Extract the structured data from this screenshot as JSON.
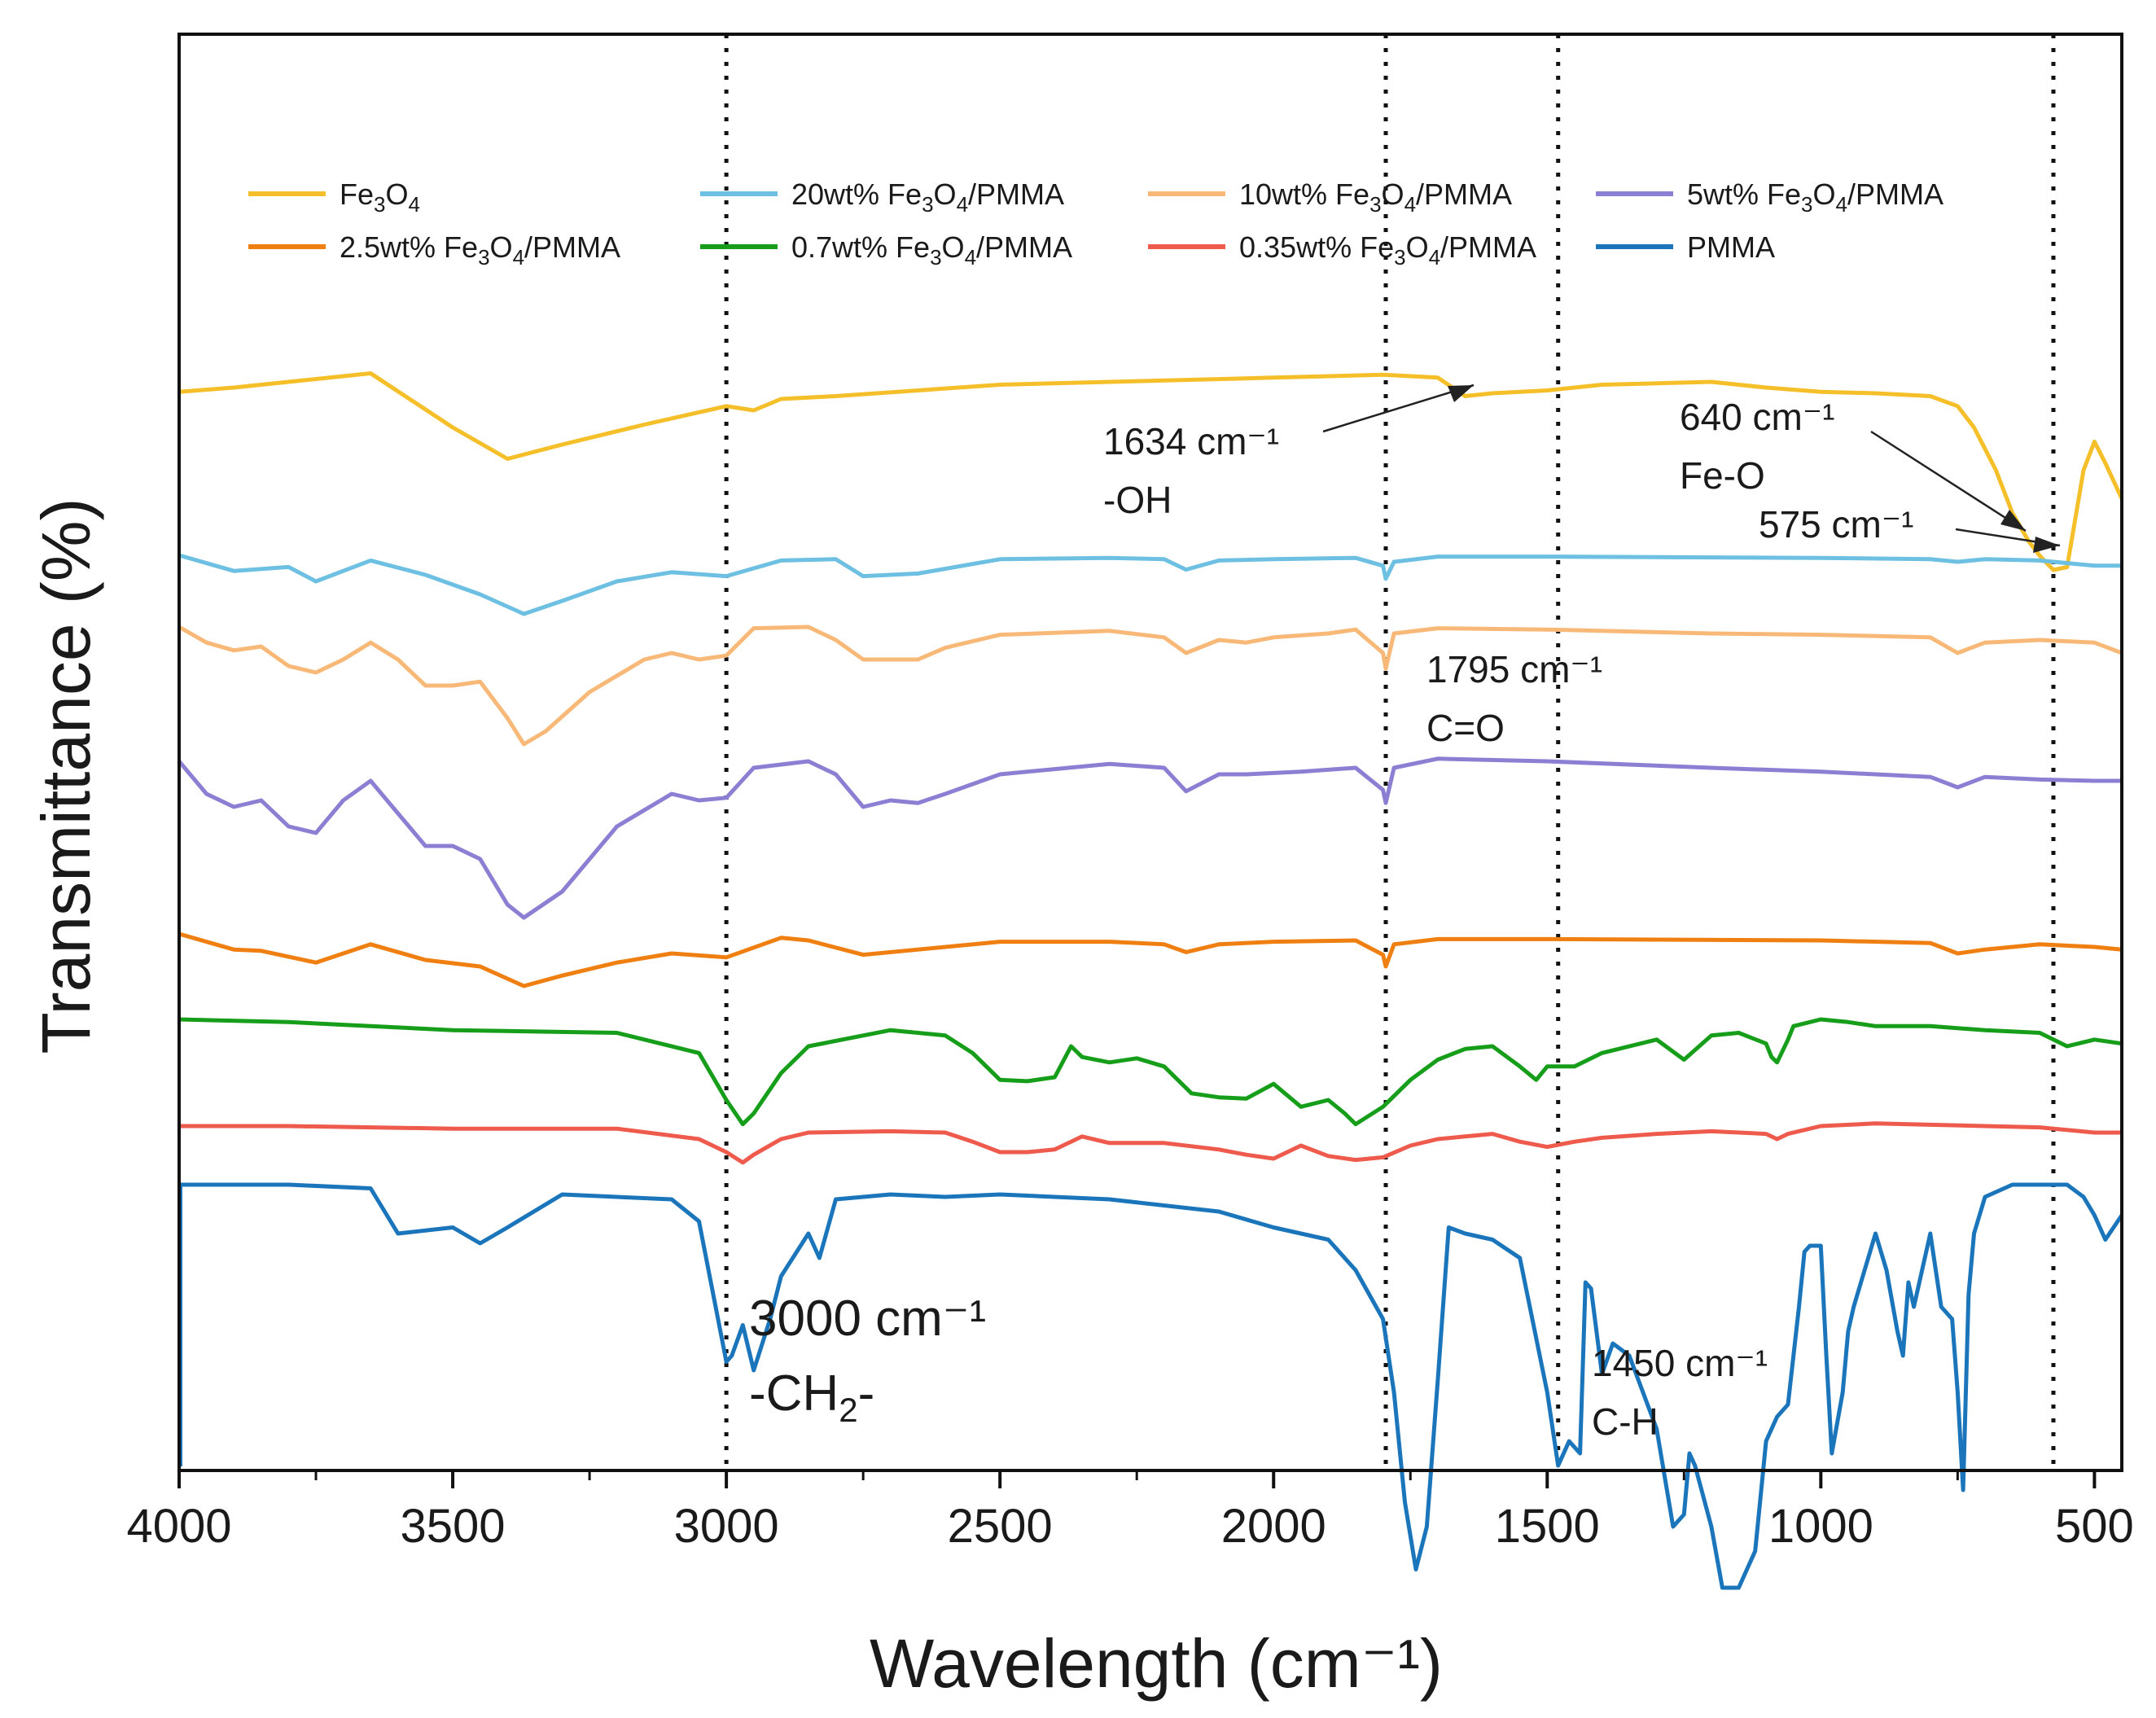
{
  "chart_data": {
    "type": "line",
    "title": "",
    "xlabel": "Wavelength (cm⁻¹)",
    "ylabel": "Transmittance (%)",
    "xlim": [
      4000,
      450
    ],
    "x_reversed": true,
    "y_ticks_shown": false,
    "xticks": [
      4000,
      3500,
      3000,
      2500,
      2000,
      1500,
      1000,
      500
    ],
    "xtick_labels": [
      "4000",
      "3500",
      "3000",
      "2500",
      "2000",
      "1500",
      "1000",
      "500"
    ],
    "reference_lines": [
      3000,
      1795,
      1480,
      575
    ],
    "legend": {
      "placement": "top",
      "entries": [
        {
          "series": "Fe3O4",
          "pre": "Fe",
          "sub1": "3",
          "mid": "O",
          "sub2": "4",
          "post": ""
        },
        {
          "series": "20wt% Fe3O4/PMMA",
          "pre": "20wt% Fe",
          "sub1": "3",
          "mid": "O",
          "sub2": "4",
          "post": "/PMMA"
        },
        {
          "series": "10wt% Fe3O4/PMMA",
          "pre": "10wt% Fe",
          "sub1": "3",
          "mid": "O",
          "sub2": "4",
          "post": "/PMMA"
        },
        {
          "series": "5wt% Fe3O4/PMMA",
          "pre": "5wt% Fe",
          "sub1": "3",
          "mid": "O",
          "sub2": "4",
          "post": "/PMMA"
        },
        {
          "series": "2.5wt% Fe3O4/PMMA",
          "pre": "2.5wt% Fe",
          "sub1": "3",
          "mid": "O",
          "sub2": "4",
          "post": "/PMMA"
        },
        {
          "series": "0.7wt% Fe3O4/PMMA",
          "pre": "0.7wt% Fe",
          "sub1": "3",
          "mid": "O",
          "sub2": "4",
          "post": "/PMMA"
        },
        {
          "series": "0.35wt% Fe3O4/PMMA",
          "pre": "0.35wt% Fe",
          "sub1": "3",
          "mid": "O",
          "sub2": "4",
          "post": "/PMMA"
        },
        {
          "series": "PMMA",
          "pre": "PMMA",
          "sub1": "",
          "mid": "",
          "sub2": "",
          "post": ""
        }
      ]
    },
    "annotations": {
      "oh_wavenumber": "1634 cm⁻¹",
      "oh_group": "-OH",
      "feo_wavenumber_640": "640 cm⁻¹",
      "feo_group": "Fe-O",
      "feo_wavenumber_575": "575 cm⁻¹",
      "co_wavenumber": "1795 cm⁻¹",
      "co_group": "C=O",
      "ch2_wavenumber": "3000 cm⁻¹",
      "ch2_group_pre": "-CH",
      "ch2_group_sub": "2",
      "ch2_group_post": "-",
      "ch_wavenumber": "1450 cm⁻¹",
      "ch_group": "C-H"
    },
    "series": [
      {
        "name": "Fe3O4",
        "color": "#f5bf2a",
        "x": [
          4000,
          3900,
          3800,
          3650,
          3500,
          3400,
          3300,
          3150,
          3000,
          2950,
          2900,
          2800,
          2500,
          2000,
          1800,
          1700,
          1650,
          1600,
          1500,
          1400,
          1300,
          1200,
          1100,
          1000,
          900,
          800,
          750,
          720,
          700,
          680,
          650,
          620,
          600,
          575,
          550,
          520,
          500,
          480,
          450
        ],
        "y": [
          -1.5,
          -1.2,
          -0.8,
          -0.2,
          -4.0,
          -6.2,
          -5.2,
          -3.8,
          -2.5,
          -2.8,
          -2.0,
          -1.8,
          -1.0,
          -0.5,
          -0.3,
          -0.5,
          -1.8,
          -1.6,
          -1.4,
          -1.0,
          -0.9,
          -0.8,
          -1.2,
          -1.5,
          -1.6,
          -1.8,
          -2.5,
          -4,
          -5.5,
          -7,
          -10,
          -12,
          -13,
          -14,
          -13.8,
          -7,
          -5,
          -6.5,
          -9
        ]
      },
      {
        "name": "20wt% Fe3O4/PMMA",
        "color": "#6ec0e3",
        "x": [
          4000,
          3900,
          3800,
          3750,
          3650,
          3550,
          3450,
          3370,
          3300,
          3200,
          3100,
          3000,
          2900,
          2800,
          2750,
          2650,
          2500,
          2300,
          2200,
          2160,
          2100,
          2000,
          1850,
          1800,
          1795,
          1780,
          1700,
          1500,
          1000,
          800,
          750,
          700,
          600,
          500,
          450
        ],
        "y": [
          0,
          -1.2,
          -0.9,
          -2.0,
          -0.4,
          -1.5,
          -3.0,
          -4.5,
          -3.5,
          -2.0,
          -1.3,
          -1.6,
          -0.4,
          -0.3,
          -1.6,
          -1.4,
          -0.3,
          -0.2,
          -0.3,
          -1.1,
          -0.4,
          -0.3,
          -0.2,
          -0.8,
          -1.8,
          -0.5,
          -0.1,
          -0.1,
          -0.2,
          -0.3,
          -0.5,
          -0.3,
          -0.4,
          -0.8,
          -0.8
        ]
      },
      {
        "name": "10wt% Fe3O4/PMMA",
        "color": "#f8b978",
        "x": [
          4000,
          3950,
          3900,
          3850,
          3800,
          3750,
          3700,
          3650,
          3600,
          3550,
          3500,
          3450,
          3400,
          3370,
          3330,
          3250,
          3150,
          3100,
          3050,
          3000,
          2950,
          2850,
          2800,
          2750,
          2650,
          2600,
          2500,
          2300,
          2200,
          2160,
          2100,
          2050,
          2000,
          1900,
          1850,
          1800,
          1795,
          1780,
          1700,
          1500,
          1200,
          1000,
          800,
          750,
          700,
          600,
          500,
          450
        ],
        "y": [
          0,
          -1.2,
          -1.8,
          -1.5,
          -3,
          -3.5,
          -2.5,
          -1.2,
          -2.5,
          -4.5,
          -4.5,
          -4.2,
          -7,
          -9,
          -8,
          -5,
          -2.5,
          -2,
          -2.5,
          -2.2,
          -0.1,
          0,
          -1,
          -2.5,
          -2.5,
          -1.6,
          -0.6,
          -0.3,
          -0.8,
          -2,
          -1,
          -1.2,
          -0.8,
          -0.5,
          -0.2,
          -2,
          -3.2,
          -0.5,
          -0.1,
          -0.2,
          -0.5,
          -0.6,
          -0.8,
          -2.0,
          -1.2,
          -1.0,
          -1.2,
          -2
        ]
      },
      {
        "name": "5wt% Fe3O4/PMMA",
        "color": "#8b7fd4",
        "x": [
          4000,
          3950,
          3900,
          3850,
          3800,
          3750,
          3700,
          3650,
          3600,
          3550,
          3500,
          3450,
          3400,
          3370,
          3300,
          3200,
          3100,
          3050,
          3000,
          2950,
          2850,
          2800,
          2750,
          2700,
          2650,
          2600,
          2500,
          2300,
          2200,
          2160,
          2100,
          2050,
          1950,
          1850,
          1800,
          1795,
          1780,
          1700,
          1500,
          1200,
          1000,
          800,
          750,
          700,
          600,
          500,
          450
        ],
        "y": [
          0,
          -2.5,
          -3.5,
          -3,
          -5,
          -5.5,
          -3,
          -1.5,
          -4,
          -6.5,
          -6.5,
          -7.5,
          -11,
          -12,
          -10,
          -5,
          -2.5,
          -3,
          -2.8,
          -0.5,
          0,
          -1,
          -3.5,
          -3,
          -3.2,
          -2.5,
          -1,
          -0.2,
          -0.5,
          -2.3,
          -1,
          -1,
          -0.8,
          -0.5,
          -2.2,
          -3.2,
          -0.5,
          0.2,
          0,
          -0.5,
          -0.8,
          -1.2,
          -2.0,
          -1.2,
          -1.4,
          -1.5,
          -1.5
        ]
      },
      {
        "name": "2.5wt% Fe3O4/PMMA",
        "color": "#f07f12",
        "x": [
          4000,
          3900,
          3850,
          3750,
          3650,
          3550,
          3450,
          3370,
          3300,
          3200,
          3100,
          3000,
          2900,
          2850,
          2750,
          2500,
          2300,
          2200,
          2160,
          2100,
          2000,
          1850,
          1800,
          1795,
          1780,
          1700,
          1500,
          1000,
          800,
          750,
          700,
          600,
          500,
          450
        ],
        "y": [
          0,
          -1.2,
          -1.3,
          -2.2,
          -0.8,
          -2.0,
          -2.5,
          -4,
          -3.2,
          -2.2,
          -1.5,
          -1.8,
          -0.3,
          -0.5,
          -1.6,
          -0.6,
          -0.6,
          -0.8,
          -1.4,
          -0.8,
          -0.6,
          -0.5,
          -1.6,
          -2.5,
          -0.8,
          -0.4,
          -0.4,
          -0.5,
          -0.7,
          -1.5,
          -1.2,
          -0.8,
          -1.0,
          -1.2
        ]
      },
      {
        "name": "0.7wt% Fe3O4/PMMA",
        "color": "#169e1a",
        "x": [
          4000,
          3800,
          3500,
          3200,
          3050,
          3000,
          2970,
          2950,
          2900,
          2850,
          2700,
          2600,
          2550,
          2500,
          2450,
          2400,
          2370,
          2350,
          2300,
          2250,
          2200,
          2150,
          2100,
          2050,
          2000,
          1950,
          1900,
          1870,
          1850,
          1800,
          1750,
          1700,
          1650,
          1600,
          1550,
          1520,
          1500,
          1450,
          1400,
          1300,
          1250,
          1200,
          1150,
          1100,
          1090,
          1080,
          1060,
          1050,
          1000,
          950,
          900,
          800,
          700,
          600,
          550,
          500,
          450
        ],
        "y": [
          0,
          -0.2,
          -0.8,
          -1.0,
          -2.5,
          -6,
          -7.8,
          -7,
          -4,
          -2,
          -0.8,
          -1.2,
          -2.5,
          -4.5,
          -4.6,
          -4.3,
          -2,
          -2.8,
          -3.2,
          -2.9,
          -3.5,
          -5.5,
          -5.8,
          -5.9,
          -4.8,
          -6.5,
          -6,
          -7,
          -7.8,
          -6.5,
          -4.5,
          -3.0,
          -2.2,
          -2.0,
          -3.5,
          -4.5,
          -3.5,
          -3.5,
          -2.5,
          -1.5,
          -3.0,
          -1.2,
          -1.0,
          -1.8,
          -2.8,
          -3.2,
          -1.5,
          -0.5,
          0,
          -0.2,
          -0.5,
          -0.5,
          -0.8,
          -1.0,
          -2.0,
          -1.5,
          -1.8
        ]
      },
      {
        "name": "0.35wt% Fe3O4/PMMA",
        "color": "#ee5a4c",
        "x": [
          4000,
          3800,
          3500,
          3200,
          3050,
          3000,
          2970,
          2950,
          2900,
          2850,
          2700,
          2600,
          2550,
          2500,
          2450,
          2400,
          2350,
          2300,
          2200,
          2100,
          2050,
          2000,
          1950,
          1900,
          1850,
          1800,
          1750,
          1700,
          1650,
          1600,
          1550,
          1500,
          1450,
          1400,
          1300,
          1200,
          1100,
          1080,
          1060,
          1000,
          900,
          800,
          700,
          600,
          500,
          450
        ],
        "y": [
          0,
          0,
          -0.2,
          -0.2,
          -1.0,
          -2.0,
          -2.8,
          -2.2,
          -1.0,
          -0.5,
          -0.4,
          -0.5,
          -1.2,
          -2.0,
          -2.0,
          -1.8,
          -0.8,
          -1.3,
          -1.3,
          -1.8,
          -2.2,
          -2.5,
          -1.5,
          -2.3,
          -2.6,
          -2.4,
          -1.5,
          -1.0,
          -0.8,
          -0.6,
          -1.2,
          -1.6,
          -1.2,
          -0.9,
          -0.6,
          -0.4,
          -0.6,
          -1.0,
          -0.6,
          0,
          0.2,
          0.1,
          0,
          -0.1,
          -0.5,
          -0.5
        ]
      },
      {
        "name": "PMMA",
        "color": "#1b75bb",
        "x": [
          4000,
          3800,
          3650,
          3600,
          3500,
          3450,
          3400,
          3300,
          3100,
          3050,
          3000,
          2990,
          2970,
          2950,
          2920,
          2900,
          2850,
          2830,
          2800,
          2700,
          2600,
          2500,
          2300,
          2100,
          2000,
          1900,
          1850,
          1800,
          1780,
          1760,
          1740,
          1720,
          1700,
          1680,
          1650,
          1600,
          1550,
          1500,
          1480,
          1460,
          1440,
          1430,
          1420,
          1400,
          1380,
          1350,
          1300,
          1270,
          1250,
          1240,
          1230,
          1200,
          1180,
          1150,
          1120,
          1100,
          1080,
          1060,
          1040,
          1030,
          1020,
          1000,
          990,
          980,
          960,
          950,
          940,
          900,
          880,
          860,
          850,
          840,
          830,
          800,
          780,
          760,
          750,
          740,
          730,
          720,
          700,
          650,
          600,
          550,
          520,
          500,
          480,
          450
        ],
        "y": [
          0,
          0,
          -0.3,
          -4.0,
          -3.5,
          -4.8,
          -3.5,
          -0.8,
          -1.2,
          -3,
          -14.5,
          -14,
          -11.5,
          -15.2,
          -11,
          -7.5,
          -4,
          -6,
          -1.2,
          -0.8,
          -1.0,
          -0.8,
          -1.2,
          -2.2,
          -3.5,
          -4.5,
          -7,
          -11,
          -17,
          -26,
          -31.5,
          -28,
          -16,
          -3.5,
          -4,
          -4.5,
          -6,
          -17,
          -23,
          -21,
          -22,
          -8,
          -8.5,
          -15.5,
          -13,
          -14,
          -20,
          -28,
          -27,
          -22,
          -23,
          -28,
          -33,
          -33,
          -30,
          -21,
          -19,
          -18,
          -10,
          -5.5,
          -5,
          -5,
          -14,
          -22,
          -17,
          -12,
          -10,
          -4,
          -7,
          -12,
          -14,
          -8,
          -10,
          -4,
          -10,
          -11,
          -17,
          -25,
          -9,
          -4,
          -1,
          0,
          0,
          0,
          -1,
          -2.5,
          -4.5,
          -2.5
        ]
      }
    ]
  }
}
